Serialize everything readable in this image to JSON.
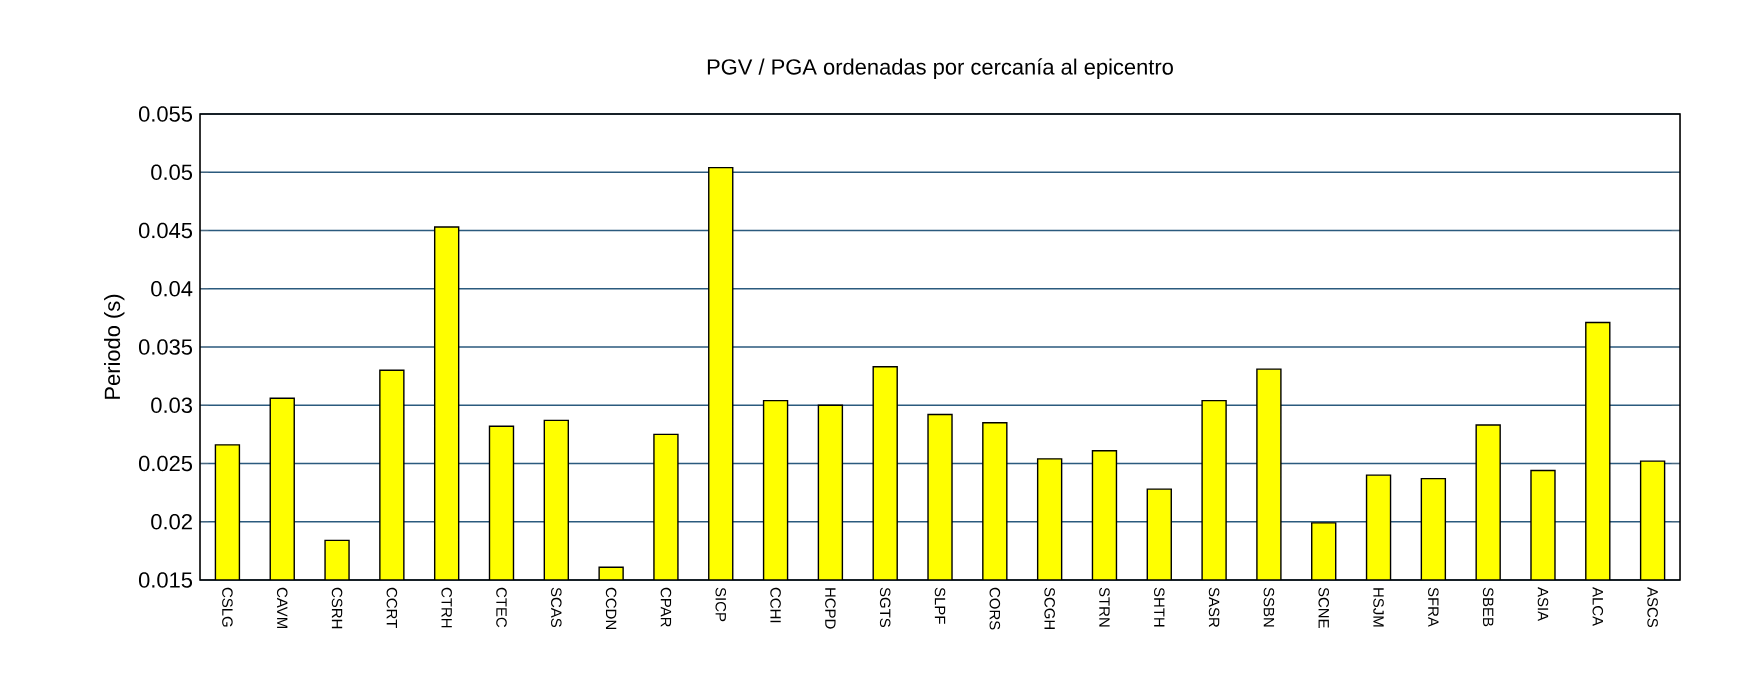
{
  "chart_data": {
    "type": "bar",
    "title": "PGV / PGA ordenadas por cercanía al epicentro",
    "ylabel": "Periodo (s)",
    "categories": [
      "CSLG",
      "CAVM",
      "CSRH",
      "CCRT",
      "CTRH",
      "CTEC",
      "SCAS",
      "CCDN",
      "CPAR",
      "SICP",
      "CCHI",
      "HCPD",
      "SGTS",
      "SLPF",
      "CORS",
      "SCGH",
      "STRN",
      "SHTH",
      "SASR",
      "SSBN",
      "SCNE",
      "HSJM",
      "SFRA",
      "SBEB",
      "ASIA",
      "ALCA",
      "ASCS"
    ],
    "values": [
      0.0266,
      0.0306,
      0.0184,
      0.033,
      0.0453,
      0.0282,
      0.0287,
      0.0161,
      0.0275,
      0.0504,
      0.0304,
      0.03,
      0.0333,
      0.0292,
      0.0285,
      0.0254,
      0.0261,
      0.0228,
      0.0304,
      0.0331,
      0.0199,
      0.024,
      0.0237,
      0.0283,
      0.0244,
      0.0371,
      0.0252
    ],
    "color": "#ffff00",
    "ylim": [
      0.015,
      0.055
    ],
    "yticks": [
      0.015,
      0.02,
      0.025,
      0.03,
      0.035,
      0.04,
      0.045,
      0.05,
      0.055
    ],
    "grid": "y"
  }
}
